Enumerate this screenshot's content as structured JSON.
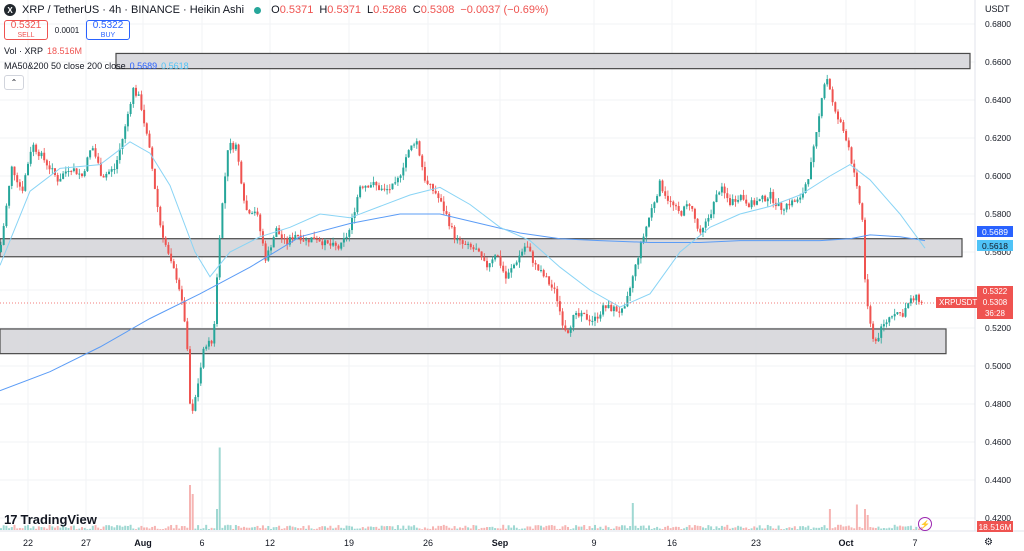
{
  "header": {
    "title": "XRP / TetherUS · 4h · BINANCE · Heikin Ashi",
    "icon_symbol": "X",
    "ohlc": [
      {
        "label": "O",
        "value": "0.5371"
      },
      {
        "label": "H",
        "value": "0.5371"
      },
      {
        "label": "L",
        "value": "0.5286"
      },
      {
        "label": "C",
        "value": "0.5308"
      }
    ],
    "change": "−0.0037 (−0.69%)"
  },
  "trade": {
    "sell_price": "0.5321",
    "sell_label": "SELL",
    "spread": "0.0001",
    "buy_price": "0.5322",
    "buy_label": "BUY"
  },
  "indicators": {
    "vol_name": "Vol · XRP",
    "vol_value": "18.516M",
    "ma_name": "MA50&200 50 close 200 close",
    "ma50_value": "0.5689",
    "ma200_value": "0.5618"
  },
  "collapse_glyph": "⌃",
  "price_axis": {
    "currency": "USDT",
    "labels": [
      "0.6800",
      "0.6600",
      "0.6400",
      "0.6200",
      "0.6000",
      "0.5800",
      "0.5600",
      "0.5400",
      "0.5200",
      "0.5000",
      "0.4800",
      "0.4600",
      "0.4400",
      "0.4200"
    ],
    "ma50_tag": "0.5689",
    "ma200_tag": "0.5618",
    "bid_tag": "0.5322",
    "last_tag": "0.5308",
    "countdown": "36:28",
    "volume_tag": "18.516M",
    "symbol_label": "XRPUSDT"
  },
  "time_axis": {
    "labels": [
      "22",
      "27",
      "Aug",
      "6",
      "12",
      "19",
      "26",
      "Sep",
      "9",
      "16",
      "23",
      "Oct",
      "7"
    ]
  },
  "logo_text": "TradingView",
  "colors": {
    "up": "#26a69a",
    "down": "#ef5350",
    "vol_up": "#9fd8d2",
    "vol_down": "#f6b4b2",
    "ma50": "#5b9cf6",
    "ma200": "#89d4f5",
    "zone_fill": "#d4d4d8",
    "zone_border": "#4a4a4a"
  },
  "chart_data": {
    "type": "candlestick",
    "style": "Heikin Ashi",
    "symbol": "XRPUSDT",
    "interval": "4h",
    "ylim": [
      0.41,
      0.69
    ],
    "x_ticks": [
      "22",
      "27",
      "Aug",
      "6",
      "12",
      "19",
      "26",
      "Sep",
      "9",
      "16",
      "23",
      "Oct",
      "7"
    ],
    "zones": [
      {
        "top": 0.6645,
        "bottom": 0.6565
      },
      {
        "top": 0.567,
        "bottom": 0.5575
      },
      {
        "top": 0.5195,
        "bottom": 0.5065
      }
    ],
    "current_price": 0.5308,
    "anchors": [
      [
        0,
        0.56
      ],
      [
        12,
        0.605
      ],
      [
        22,
        0.592
      ],
      [
        32,
        0.617
      ],
      [
        45,
        0.608
      ],
      [
        58,
        0.598
      ],
      [
        70,
        0.605
      ],
      [
        82,
        0.6
      ],
      [
        92,
        0.616
      ],
      [
        102,
        0.6
      ],
      [
        115,
        0.604
      ],
      [
        125,
        0.625
      ],
      [
        133,
        0.646
      ],
      [
        140,
        0.64
      ],
      [
        150,
        0.612
      ],
      [
        160,
        0.575
      ],
      [
        170,
        0.555
      ],
      [
        178,
        0.545
      ],
      [
        186,
        0.52
      ],
      [
        191,
        0.47
      ],
      [
        197,
        0.488
      ],
      [
        205,
        0.512
      ],
      [
        213,
        0.512
      ],
      [
        220,
        0.572
      ],
      [
        228,
        0.616
      ],
      [
        236,
        0.616
      ],
      [
        246,
        0.582
      ],
      [
        256,
        0.582
      ],
      [
        266,
        0.556
      ],
      [
        276,
        0.572
      ],
      [
        286,
        0.564
      ],
      [
        296,
        0.57
      ],
      [
        306,
        0.566
      ],
      [
        316,
        0.568
      ],
      [
        326,
        0.564
      ],
      [
        340,
        0.562
      ],
      [
        350,
        0.572
      ],
      [
        360,
        0.595
      ],
      [
        372,
        0.596
      ],
      [
        384,
        0.592
      ],
      [
        396,
        0.595
      ],
      [
        406,
        0.61
      ],
      [
        416,
        0.62
      ],
      [
        426,
        0.596
      ],
      [
        436,
        0.591
      ],
      [
        446,
        0.58
      ],
      [
        456,
        0.566
      ],
      [
        466,
        0.563
      ],
      [
        476,
        0.561
      ],
      [
        486,
        0.552
      ],
      [
        496,
        0.56
      ],
      [
        506,
        0.546
      ],
      [
        516,
        0.555
      ],
      [
        526,
        0.564
      ],
      [
        536,
        0.552
      ],
      [
        546,
        0.546
      ],
      [
        556,
        0.538
      ],
      [
        562,
        0.524
      ],
      [
        567,
        0.518
      ],
      [
        574,
        0.526
      ],
      [
        584,
        0.526
      ],
      [
        594,
        0.524
      ],
      [
        604,
        0.531
      ],
      [
        614,
        0.53
      ],
      [
        624,
        0.528
      ],
      [
        632,
        0.545
      ],
      [
        640,
        0.562
      ],
      [
        650,
        0.58
      ],
      [
        660,
        0.596
      ],
      [
        670,
        0.586
      ],
      [
        680,
        0.58
      ],
      [
        690,
        0.586
      ],
      [
        700,
        0.568
      ],
      [
        710,
        0.58
      ],
      [
        720,
        0.594
      ],
      [
        730,
        0.586
      ],
      [
        740,
        0.59
      ],
      [
        750,
        0.585
      ],
      [
        760,
        0.587
      ],
      [
        770,
        0.59
      ],
      [
        780,
        0.583
      ],
      [
        790,
        0.586
      ],
      [
        800,
        0.587
      ],
      [
        810,
        0.603
      ],
      [
        818,
        0.626
      ],
      [
        823,
        0.648
      ],
      [
        828,
        0.652
      ],
      [
        834,
        0.634
      ],
      [
        840,
        0.628
      ],
      [
        848,
        0.618
      ],
      [
        856,
        0.595
      ],
      [
        862,
        0.58
      ],
      [
        866,
        0.535
      ],
      [
        870,
        0.522
      ],
      [
        875,
        0.512
      ],
      [
        880,
        0.518
      ],
      [
        886,
        0.523
      ],
      [
        894,
        0.529
      ],
      [
        902,
        0.527
      ],
      [
        910,
        0.534
      ],
      [
        918,
        0.536
      ],
      [
        924,
        0.531
      ]
    ],
    "volume": {
      "base_range": [
        0.5,
        3.5
      ],
      "spikes": [
        {
          "x": 190,
          "value": 30
        },
        {
          "x": 193,
          "value": 24
        },
        {
          "x": 220,
          "value": 55
        },
        {
          "x": 216,
          "value": 14
        },
        {
          "x": 632,
          "value": 18
        },
        {
          "x": 830,
          "value": 14
        },
        {
          "x": 858,
          "value": 17
        },
        {
          "x": 864,
          "value": 14
        },
        {
          "x": 868,
          "value": 10
        }
      ]
    },
    "ma50_points": [
      [
        0,
        0.553
      ],
      [
        30,
        0.592
      ],
      [
        60,
        0.604
      ],
      [
        100,
        0.606
      ],
      [
        130,
        0.618
      ],
      [
        150,
        0.612
      ],
      [
        170,
        0.595
      ],
      [
        195,
        0.56
      ],
      [
        210,
        0.547
      ],
      [
        230,
        0.56
      ],
      [
        260,
        0.568
      ],
      [
        290,
        0.573
      ],
      [
        320,
        0.58
      ],
      [
        350,
        0.578
      ],
      [
        380,
        0.584
      ],
      [
        410,
        0.59
      ],
      [
        440,
        0.594
      ],
      [
        470,
        0.585
      ],
      [
        500,
        0.573
      ],
      [
        530,
        0.566
      ],
      [
        560,
        0.552
      ],
      [
        590,
        0.54
      ],
      [
        620,
        0.531
      ],
      [
        650,
        0.538
      ],
      [
        680,
        0.56
      ],
      [
        710,
        0.573
      ],
      [
        740,
        0.58
      ],
      [
        770,
        0.584
      ],
      [
        800,
        0.59
      ],
      [
        830,
        0.6
      ],
      [
        850,
        0.606
      ],
      [
        870,
        0.598
      ],
      [
        900,
        0.58
      ],
      [
        925,
        0.562
      ]
    ],
    "ma200_points": [
      [
        0,
        0.487
      ],
      [
        50,
        0.497
      ],
      [
        100,
        0.51
      ],
      [
        150,
        0.525
      ],
      [
        200,
        0.538
      ],
      [
        250,
        0.552
      ],
      [
        300,
        0.568
      ],
      [
        350,
        0.575
      ],
      [
        400,
        0.58
      ],
      [
        440,
        0.58
      ],
      [
        480,
        0.575
      ],
      [
        520,
        0.57
      ],
      [
        560,
        0.567
      ],
      [
        600,
        0.566
      ],
      [
        650,
        0.565
      ],
      [
        700,
        0.565
      ],
      [
        740,
        0.566
      ],
      [
        780,
        0.566
      ],
      [
        820,
        0.566
      ],
      [
        850,
        0.567
      ],
      [
        870,
        0.569
      ],
      [
        900,
        0.568
      ],
      [
        925,
        0.566
      ]
    ]
  }
}
